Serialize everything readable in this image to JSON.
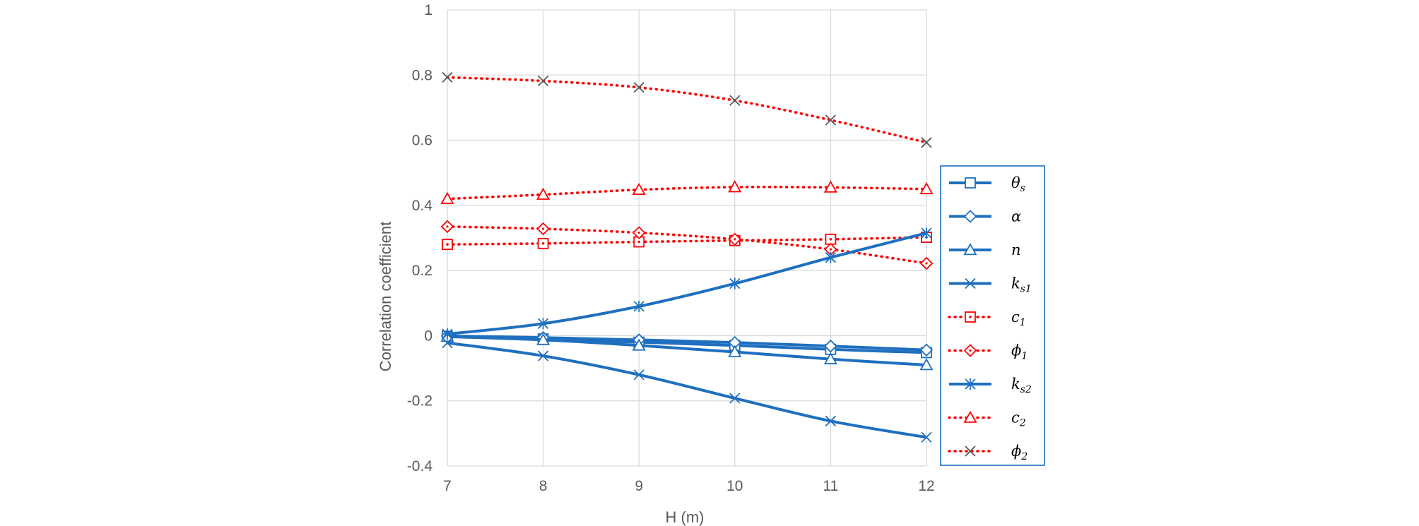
{
  "chart_data": {
    "type": "line",
    "title": "",
    "xlabel": "H (m)",
    "ylabel": "Correlation coefficient",
    "x": [
      7,
      8,
      9,
      10,
      11,
      12
    ],
    "xlim": [
      7,
      12
    ],
    "ylim": [
      -0.4,
      1
    ],
    "x_ticks": [
      "7",
      "8",
      "9",
      "10",
      "11",
      "12"
    ],
    "y_ticks": [
      "-0.4",
      "-0.2",
      "0",
      "0.2",
      "0.4",
      "0.6",
      "0.8",
      "1"
    ],
    "grid": true,
    "legend_position": "right",
    "series": [
      {
        "key": "theta_s",
        "name": "θ",
        "sub": "s",
        "color": "#1F6FBF",
        "dash": "solid",
        "marker": "square",
        "marker_color": "#1F6FBF",
        "values": [
          -0.002,
          -0.01,
          -0.02,
          -0.03,
          -0.042,
          -0.052
        ]
      },
      {
        "key": "alpha",
        "name": "α",
        "sub": "",
        "color": "#1F6FBF",
        "dash": "solid",
        "marker": "diamond",
        "marker_color": "#1F6FBF",
        "values": [
          -0.001,
          -0.006,
          -0.013,
          -0.021,
          -0.032,
          -0.044
        ]
      },
      {
        "key": "n",
        "name": "n",
        "sub": "",
        "color": "#1F6FBF",
        "dash": "solid",
        "marker": "triangle",
        "marker_color": "#1F6FBF",
        "values": [
          -0.003,
          -0.013,
          -0.03,
          -0.05,
          -0.072,
          -0.09
        ]
      },
      {
        "key": "ks1",
        "name": "k",
        "sub": "s1",
        "color": "#1F6FBF",
        "dash": "solid",
        "marker": "x",
        "marker_color": "#1F6FBF",
        "values": [
          -0.022,
          -0.062,
          -0.12,
          -0.192,
          -0.262,
          -0.312
        ]
      },
      {
        "key": "c1",
        "name": "c",
        "sub": "1",
        "color": "#FF0000",
        "dash": "dot",
        "marker": "square-dot",
        "marker_color": "#FF0000",
        "values": [
          0.28,
          0.283,
          0.288,
          0.292,
          0.296,
          0.302
        ]
      },
      {
        "key": "phi1",
        "name": "ϕ",
        "sub": "1",
        "color": "#FF0000",
        "dash": "dot",
        "marker": "diamond-dot",
        "marker_color": "#FF0000",
        "values": [
          0.335,
          0.328,
          0.316,
          0.296,
          0.265,
          0.222
        ]
      },
      {
        "key": "ks2",
        "name": "k",
        "sub": "s2",
        "color": "#1F6FBF",
        "dash": "solid",
        "marker": "star",
        "marker_color": "#1F6FBF",
        "values": [
          0.005,
          0.037,
          0.09,
          0.16,
          0.24,
          0.315
        ]
      },
      {
        "key": "c2",
        "name": "c",
        "sub": "2",
        "color": "#FF0000",
        "dash": "dot",
        "marker": "triangle",
        "marker_color": "#FF0000",
        "values": [
          0.42,
          0.433,
          0.448,
          0.456,
          0.455,
          0.45
        ]
      },
      {
        "key": "phi2",
        "name": "ϕ",
        "sub": "2",
        "color": "#FF0000",
        "dash": "dot",
        "marker": "x",
        "marker_color": "#595959",
        "values": [
          0.793,
          0.782,
          0.762,
          0.722,
          0.662,
          0.593
        ]
      }
    ],
    "colors": {
      "grid": "#D9D9D9",
      "legend_border": "#1F6FBF",
      "tick_text": "#595959"
    }
  }
}
